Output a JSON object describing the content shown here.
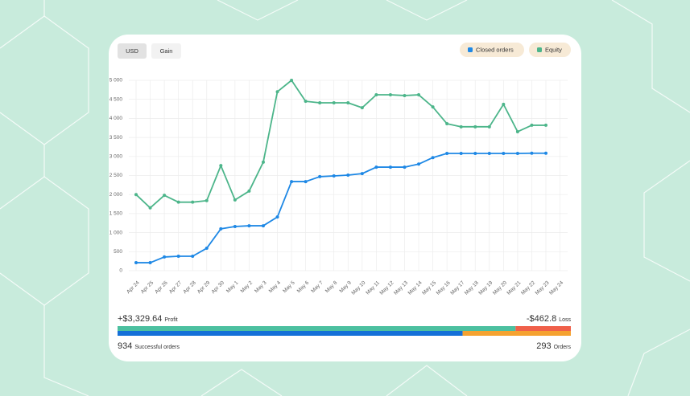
{
  "buttons": [
    "USD",
    "Gain"
  ],
  "chart_data": {
    "type": "line",
    "categories": [
      "Apr 24",
      "Apr 25",
      "Apr 26",
      "Apr 27",
      "Apr 28",
      "Apr 29",
      "Apr 30",
      "May 1",
      "May 2",
      "May 3",
      "May 4",
      "May 5",
      "May 6",
      "May 7",
      "May 8",
      "May 9",
      "May 10",
      "May 11",
      "May 12",
      "May 13",
      "May 14",
      "May 15",
      "May 16",
      "May 17",
      "May 18",
      "May 19",
      "May 20",
      "May 21",
      "May 22",
      "May 23",
      "May 24"
    ],
    "series": [
      {
        "name": "Closed orders",
        "color": "#1e88e5",
        "values": [
          210,
          210,
          360,
          380,
          380,
          590,
          1100,
          1160,
          1180,
          1180,
          1410,
          2340,
          2340,
          2470,
          2490,
          2510,
          2550,
          2720,
          2720,
          2720,
          2800,
          2970,
          3080,
          3080,
          3080,
          3080,
          3080,
          3080,
          3085,
          3085,
          null
        ]
      },
      {
        "name": "Equity",
        "color": "#4cb58a",
        "values": [
          2000,
          1650,
          1980,
          1800,
          1800,
          1840,
          2760,
          1860,
          2090,
          2850,
          4700,
          5000,
          4450,
          4410,
          4410,
          4410,
          4280,
          4620,
          4620,
          4600,
          4620,
          4300,
          3860,
          3780,
          3780,
          3780,
          4370,
          3650,
          3820,
          3820,
          null
        ]
      }
    ],
    "ylim": [
      0,
      5000
    ],
    "yticks": [
      0,
      500,
      {
        "value": 1000,
        "label": "1 000"
      },
      {
        "value": 1500,
        "label": "1 500"
      },
      {
        "value": 2000,
        "label": "2 000"
      },
      {
        "value": 2500,
        "label": "2 500"
      },
      {
        "value": 3000,
        "label": "3 000"
      },
      {
        "value": 3500,
        "label": "3 500"
      },
      {
        "value": 4000,
        "label": "4 000"
      },
      {
        "value": 4500,
        "label": "4 500"
      },
      {
        "value": 5000,
        "label": "5 000"
      }
    ],
    "grid": true
  },
  "summary": {
    "profit": {
      "value": 3329.64,
      "label": "+$3,329.64"
    },
    "profit_label": "Profit",
    "loss": {
      "value": -462.8,
      "label": "-$462.8"
    },
    "loss_label": "Loss",
    "successful_orders": 934,
    "successful_label": "Successful orders",
    "orders": 293,
    "orders_label": "Orders"
  }
}
